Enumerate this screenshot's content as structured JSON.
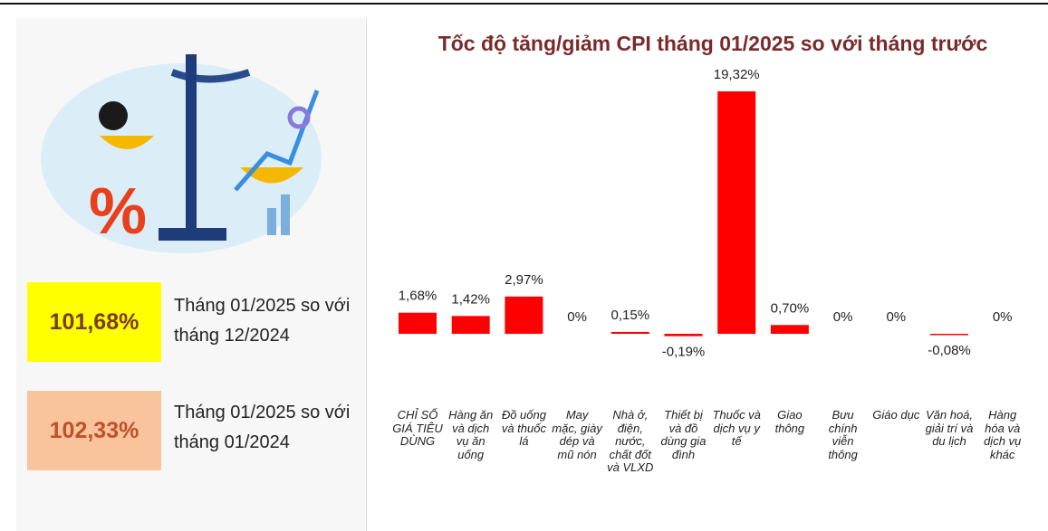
{
  "chart_data": {
    "type": "bar",
    "title": "Tốc độ tăng/giảm CPI tháng 01/2025 so với tháng trước",
    "categories": [
      "CHỈ SỐ GIÁ TIÊU DÙNG",
      "Hàng ăn và dịch vụ ăn uống",
      "Đồ uống và thuốc lá",
      "May mặc, giày dép và mũ nón",
      "Nhà ở, điện, nước, chất đốt và VLXD",
      "Thiết bị và đồ dùng gia đình",
      "Thuốc và dịch vụ y tế",
      "Giao thông",
      "Bưu chính viễn thông",
      "Giáo dục",
      "Văn hoá, giải trí và du lịch",
      "Hàng hóa và dịch vụ khác"
    ],
    "values": [
      1.68,
      1.42,
      2.97,
      0,
      0.15,
      -0.19,
      19.32,
      0.7,
      0,
      0,
      -0.08,
      0
    ],
    "value_labels": [
      "1,68%",
      "1,42%",
      "2,97%",
      "0%",
      "0,15%",
      "-0,19%",
      "19,32%",
      "0,70%",
      "0%",
      "0%",
      "-0,08%",
      "0%"
    ],
    "color": "#ff0000"
  },
  "highlights": [
    {
      "value": "101,68%",
      "text": "Tháng 01/2025 so với tháng 12/2024"
    },
    {
      "value": "102,33%",
      "text": "Tháng 01/2025 so với tháng 01/2024"
    }
  ]
}
